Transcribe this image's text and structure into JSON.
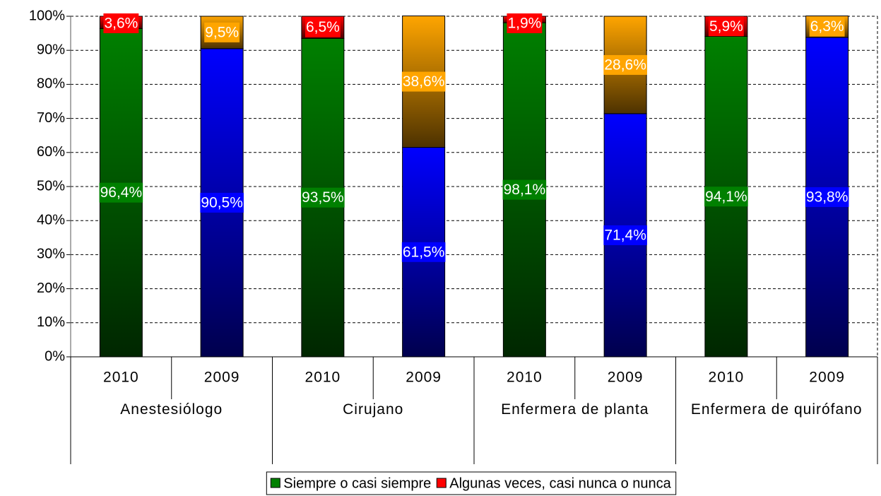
{
  "chart_data": {
    "type": "stacked_bar",
    "categories": [
      "2010",
      "2009",
      "2010",
      "2009",
      "2010",
      "2009",
      "2010",
      "2009"
    ],
    "groups": [
      "Anestesiólogo",
      "Cirujano",
      "Enfermera de planta",
      "Enfermera de quirófano"
    ],
    "series": [
      {
        "name": "Siempre o casi siempre",
        "color": "#008000",
        "colors": [
          "#008000",
          "#0000ff",
          "#008000",
          "#0000ff",
          "#008000",
          "#0000ff",
          "#008000",
          "#0000ff"
        ],
        "values": [
          96.4,
          90.5,
          93.5,
          61.5,
          98.1,
          71.4,
          94.1,
          93.8
        ],
        "value_labels": [
          "96,4%",
          "90,5%",
          "93,5%",
          "61,5%",
          "98,1%",
          "71,4%",
          "94,1%",
          "93,8%"
        ]
      },
      {
        "name": "Algunas veces, casi nunca o nunca",
        "color": "#ff0000",
        "colors": [
          "#ff0000",
          "#ffa500",
          "#ff0000",
          "#ffa500",
          "#ff0000",
          "#ffa500",
          "#ff0000",
          "#ffa500"
        ],
        "values": [
          3.6,
          9.5,
          6.5,
          38.6,
          1.9,
          28.6,
          5.9,
          6.3
        ],
        "value_labels": [
          "3,6%",
          "9,5%",
          "6,5%",
          "38,6%",
          "1,9%",
          "28,6%",
          "5,9%",
          "6,3%"
        ]
      }
    ],
    "ylim": [
      0,
      100
    ],
    "yticks": [
      {
        "value": 0,
        "label": "0%"
      },
      {
        "value": 10,
        "label": "10%"
      },
      {
        "value": 20,
        "label": "20%"
      },
      {
        "value": 30,
        "label": "30%"
      },
      {
        "value": 40,
        "label": "40%"
      },
      {
        "value": 50,
        "label": "50%"
      },
      {
        "value": 60,
        "label": "60%"
      },
      {
        "value": 70,
        "label": "70%"
      },
      {
        "value": 80,
        "label": "80%"
      },
      {
        "value": 90,
        "label": "90%"
      },
      {
        "value": 100,
        "label": "100%"
      }
    ],
    "grid": true
  }
}
